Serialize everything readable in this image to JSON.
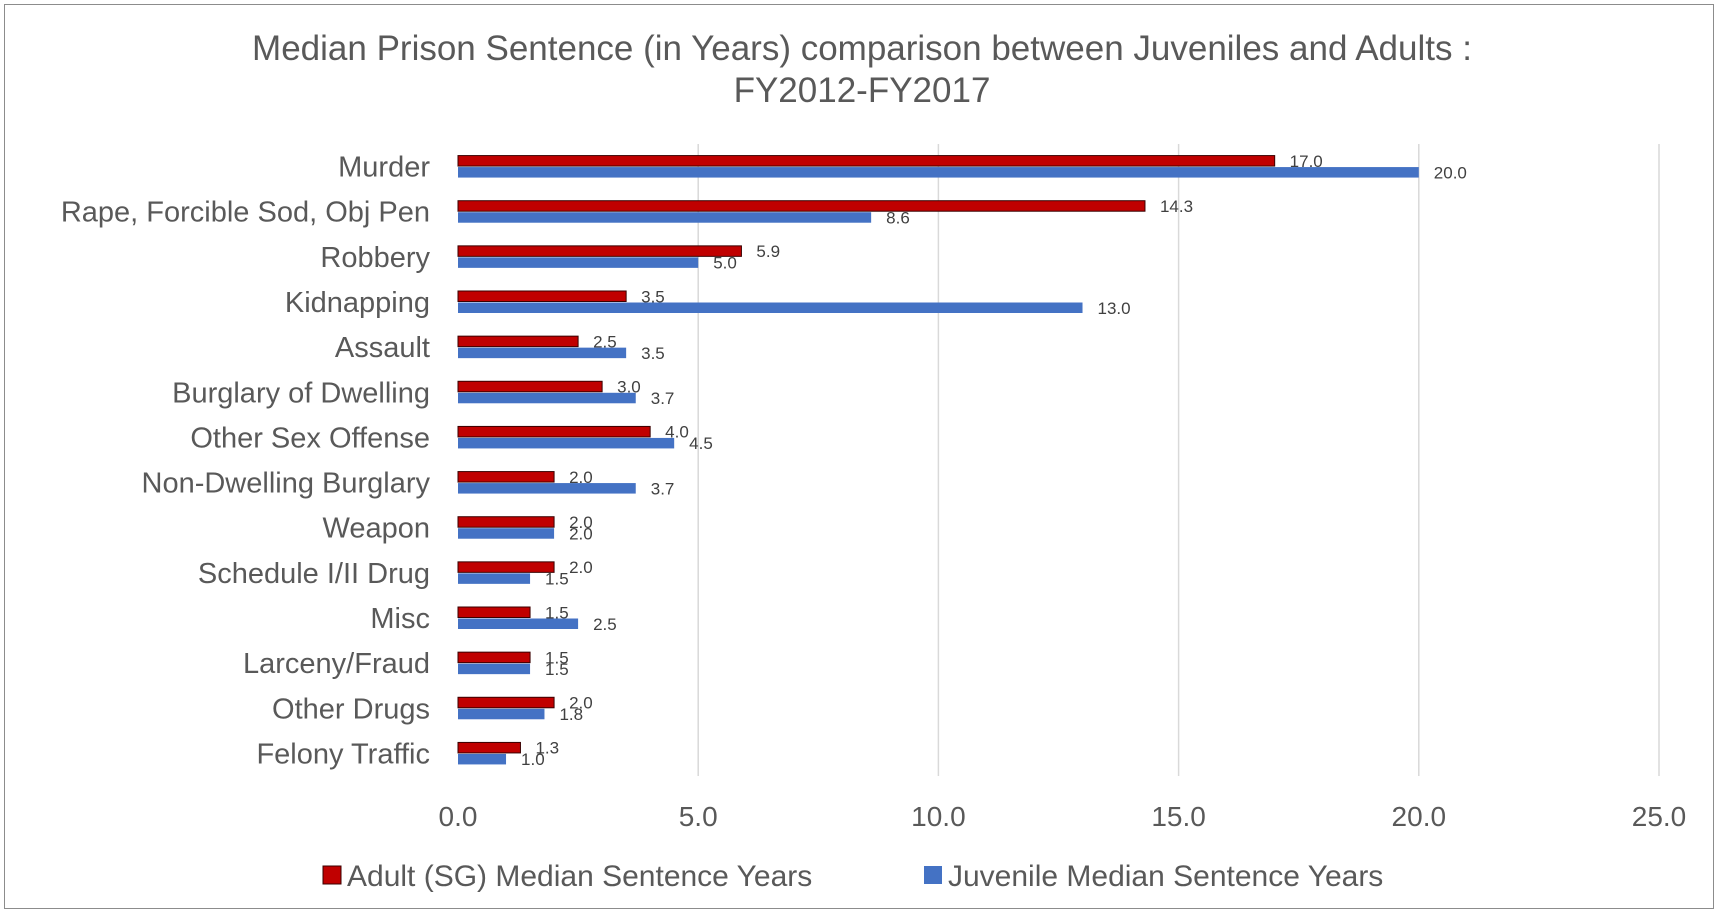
{
  "chart_data": {
    "type": "bar",
    "orientation": "horizontal",
    "title_lines": [
      "Median Prison Sentence (in Years) comparison between Juveniles and Adults :",
      "FY2012-FY2017"
    ],
    "categories": [
      "Murder",
      "Rape, Forcible Sod, Obj Pen",
      "Robbery",
      "Kidnapping",
      "Assault",
      "Burglary of Dwelling",
      "Other Sex Offense",
      "Non-Dwelling Burglary",
      "Weapon",
      "Schedule I/II Drug",
      "Misc",
      "Larceny/Fraud",
      "Other Drugs",
      "Felony Traffic"
    ],
    "series": [
      {
        "name": "Adult (SG) Median Sentence Years",
        "color": "#c00000",
        "values": [
          17.0,
          14.3,
          5.9,
          3.5,
          2.5,
          3.0,
          4.0,
          2.0,
          2.0,
          2.0,
          1.5,
          1.5,
          2.0,
          1.3
        ],
        "labels": [
          "17.0",
          "14.3",
          "5.9",
          "3.5",
          "2.5",
          "3.0",
          "4.0",
          "2.0",
          "2.0",
          "2.0",
          "1.5",
          "1.5",
          "2.0",
          "1.3"
        ]
      },
      {
        "name": "Juvenile Median Sentence Years",
        "color": "#4472c4",
        "values": [
          20.0,
          8.6,
          5.0,
          13.0,
          3.5,
          3.7,
          4.5,
          3.7,
          2.0,
          1.5,
          2.5,
          1.5,
          1.8,
          1.0
        ],
        "labels": [
          "20.0",
          "8.6",
          "5.0",
          "13.0",
          "3.5",
          "3.7",
          "4.5",
          "3.7",
          "2.0",
          "1.5",
          "2.5",
          "1.5",
          "1.8",
          "1.0"
        ]
      }
    ],
    "xlim": [
      0,
      25
    ],
    "xticks": [
      0,
      5,
      10,
      15,
      20,
      25
    ],
    "xtick_labels": [
      "0.0",
      "5.0",
      "10.0",
      "15.0",
      "20.0",
      "25.0"
    ],
    "grid": true,
    "legend_position": "bottom"
  }
}
